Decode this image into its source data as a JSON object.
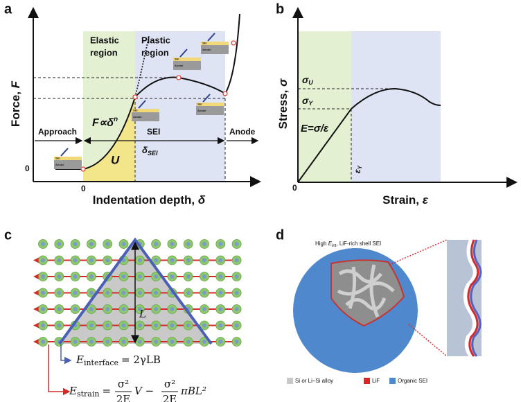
{
  "panel_a": {
    "label": "a",
    "y_axis_title": "Force, ",
    "y_axis_var": "F",
    "x_axis_title": "Indentation depth, ",
    "x_axis_var": "δ",
    "elastic_region": [
      "Elastic",
      "region"
    ],
    "plastic_region": [
      "Plastic",
      "region"
    ],
    "approach": "Approach",
    "sei": "SEI",
    "anode": "Anode",
    "power_law": "F∝δ",
    "power_exp": "n",
    "energy": "U",
    "thickness": "δ",
    "thickness_sub": "SEI",
    "y_zero": "0",
    "x_zero": "0",
    "insets": [
      {
        "top": "SEI",
        "bottom": "Anode"
      },
      {
        "top": "SEI",
        "bottom": "Anode"
      },
      {
        "top": "SEI",
        "bottom": "Anode"
      },
      {
        "top": "SEI",
        "bottom": "Anode"
      },
      {
        "top": "SEI",
        "bottom": "Anode"
      }
    ]
  },
  "panel_b": {
    "label": "b",
    "y_axis_title": "Stress, ",
    "y_axis_var": "σ",
    "x_axis_title": "Strain, ",
    "x_axis_var": "ε",
    "sigma_u": "σ",
    "sigma_u_sub": "U",
    "sigma_y": "σ",
    "sigma_y_sub": "Y",
    "modulus": "E=σ/ε",
    "eps_y": "ε",
    "eps_y_sub": "Y",
    "zero": "0"
  },
  "panel_c": {
    "label": "c",
    "length": "L",
    "eq1": {
      "symbol": "E",
      "sub": "interface",
      "rhs": "= 2γLB"
    },
    "eq2": {
      "symbol": "E",
      "sub": "strain",
      "eq": "=",
      "frac1": {
        "num": "σ²",
        "den": "2E"
      },
      "mid": "V −",
      "frac2": {
        "num": "σ²",
        "den": "2E"
      },
      "tail": "πBL²"
    }
  },
  "panel_d": {
    "label": "d",
    "title_pre": "High ",
    "title_symbol": "E",
    "title_sub": "int",
    "title_post": ", LiF-rich shell SEI",
    "legend": [
      "Si or Li–Si alloy",
      "LiF",
      "Organic SEI"
    ]
  }
}
